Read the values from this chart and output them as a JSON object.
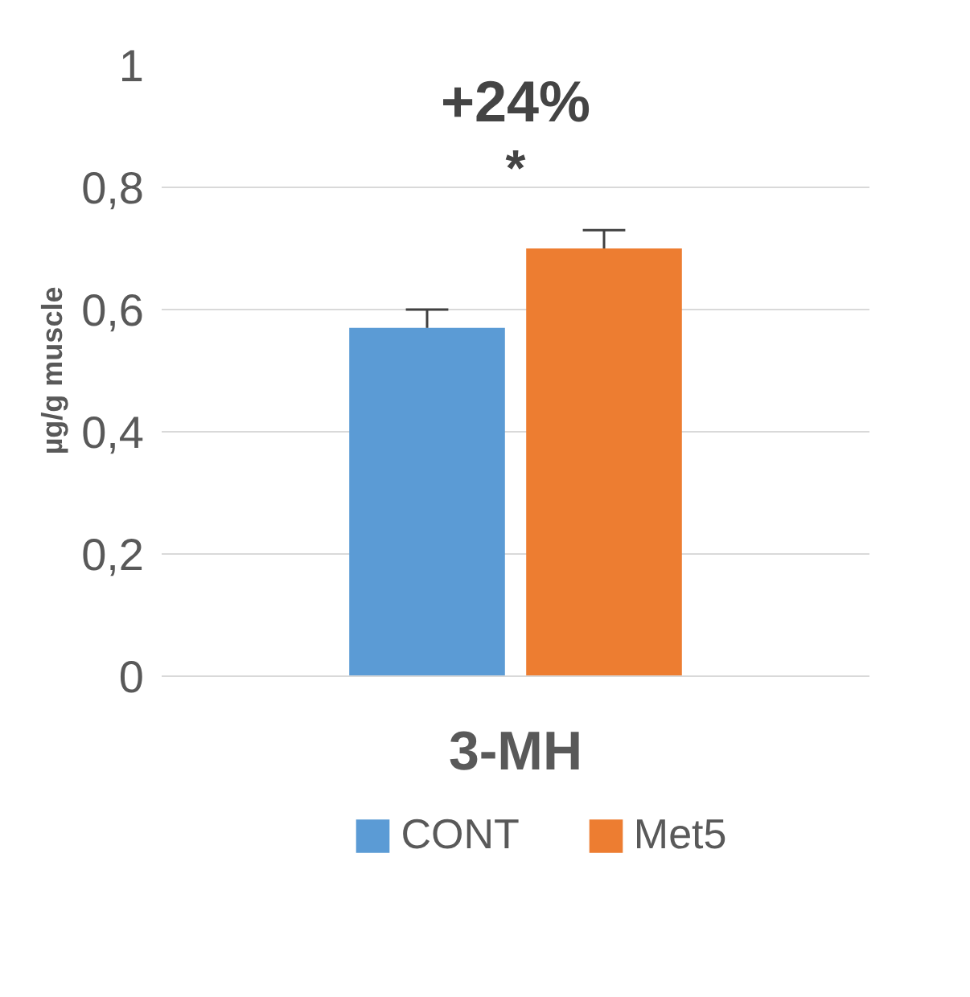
{
  "chart_data": {
    "type": "bar",
    "categories": [
      "3-MH"
    ],
    "ylabel": "µg/g muscle",
    "series": [
      {
        "name": "CONT",
        "color": "#5b9bd5",
        "values": [
          0.57
        ],
        "errors": [
          [
            0.57,
            0.6
          ]
        ]
      },
      {
        "name": "Met5",
        "color": "#ed7d31",
        "values": [
          0.7
        ],
        "errors": [
          [
            0.7,
            0.73
          ]
        ]
      }
    ],
    "ylim": [
      0,
      1
    ],
    "yticks": [
      0,
      {
        "value": 0.2,
        "label": "0,2"
      },
      {
        "value": 0.4,
        "label": "0,4"
      },
      {
        "value": 0.6,
        "label": "0,6"
      },
      {
        "value": 0.8,
        "label": "0,8"
      },
      1
    ],
    "grid": "y",
    "legend": "bottom",
    "annotations": [
      "+24%",
      "*"
    ]
  }
}
